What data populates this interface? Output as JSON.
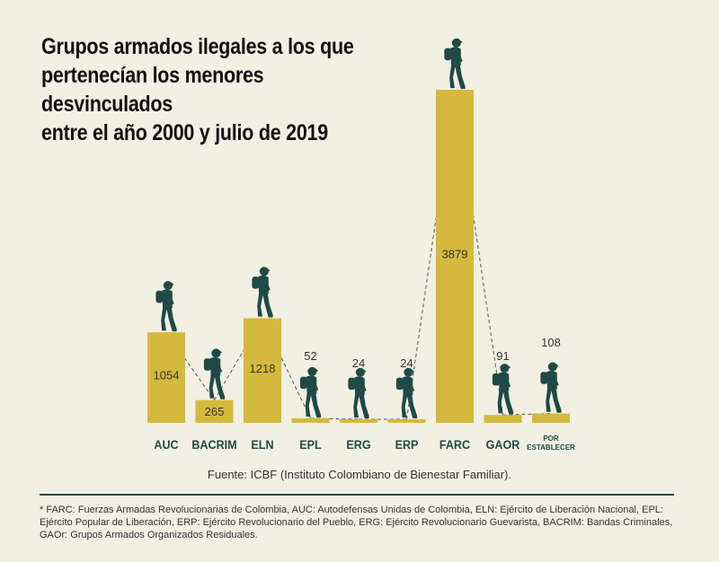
{
  "title": "Grupos armados ilegales a los que\npertenecían los menores desvinculados\nentre el año 2000 y julio de 2019",
  "source": "Fuente: ICBF (Instituto Colombiano de Bienestar Familiar).",
  "footnote": "* FARC: Fuerzas Armadas Revolucionarias de Colombia, AUC: Autodefensas Unidas de Colombia, ELN: Ejército de Liberación Nacional, EPL: Ejército Popular de Liberación, ERP: Ejército Revolucionario del Pueblo, ERG: Ejército Revolucionario Guevarista, BACRIM: Bandas Criminales, GAOr: Grupos Armados Organizados Residuales.",
  "colors": {
    "bar": "#d4b93c",
    "label": "#1f4a45",
    "figure": "#1f4a45",
    "value_text": "#333333"
  },
  "chart_data": {
    "type": "bar",
    "title": "Grupos armados ilegales a los que pertenecían los menores desvinculados entre el año 2000 y julio de 2019",
    "categories": [
      "AUC",
      "BACRIM",
      "ELN",
      "EPL",
      "ERG",
      "ERP",
      "FARC",
      "GAOR",
      "POR ESTABLECER"
    ],
    "values": [
      1054,
      265,
      1218,
      52,
      24,
      24,
      3879,
      91,
      108
    ],
    "value_labels": [
      "1054",
      "265",
      "1218",
      "52",
      "24",
      "24",
      "3879",
      "91",
      "108"
    ],
    "xlabel": "",
    "ylabel": "",
    "ylim": [
      0,
      3879
    ],
    "grid": false,
    "legend": "none"
  }
}
